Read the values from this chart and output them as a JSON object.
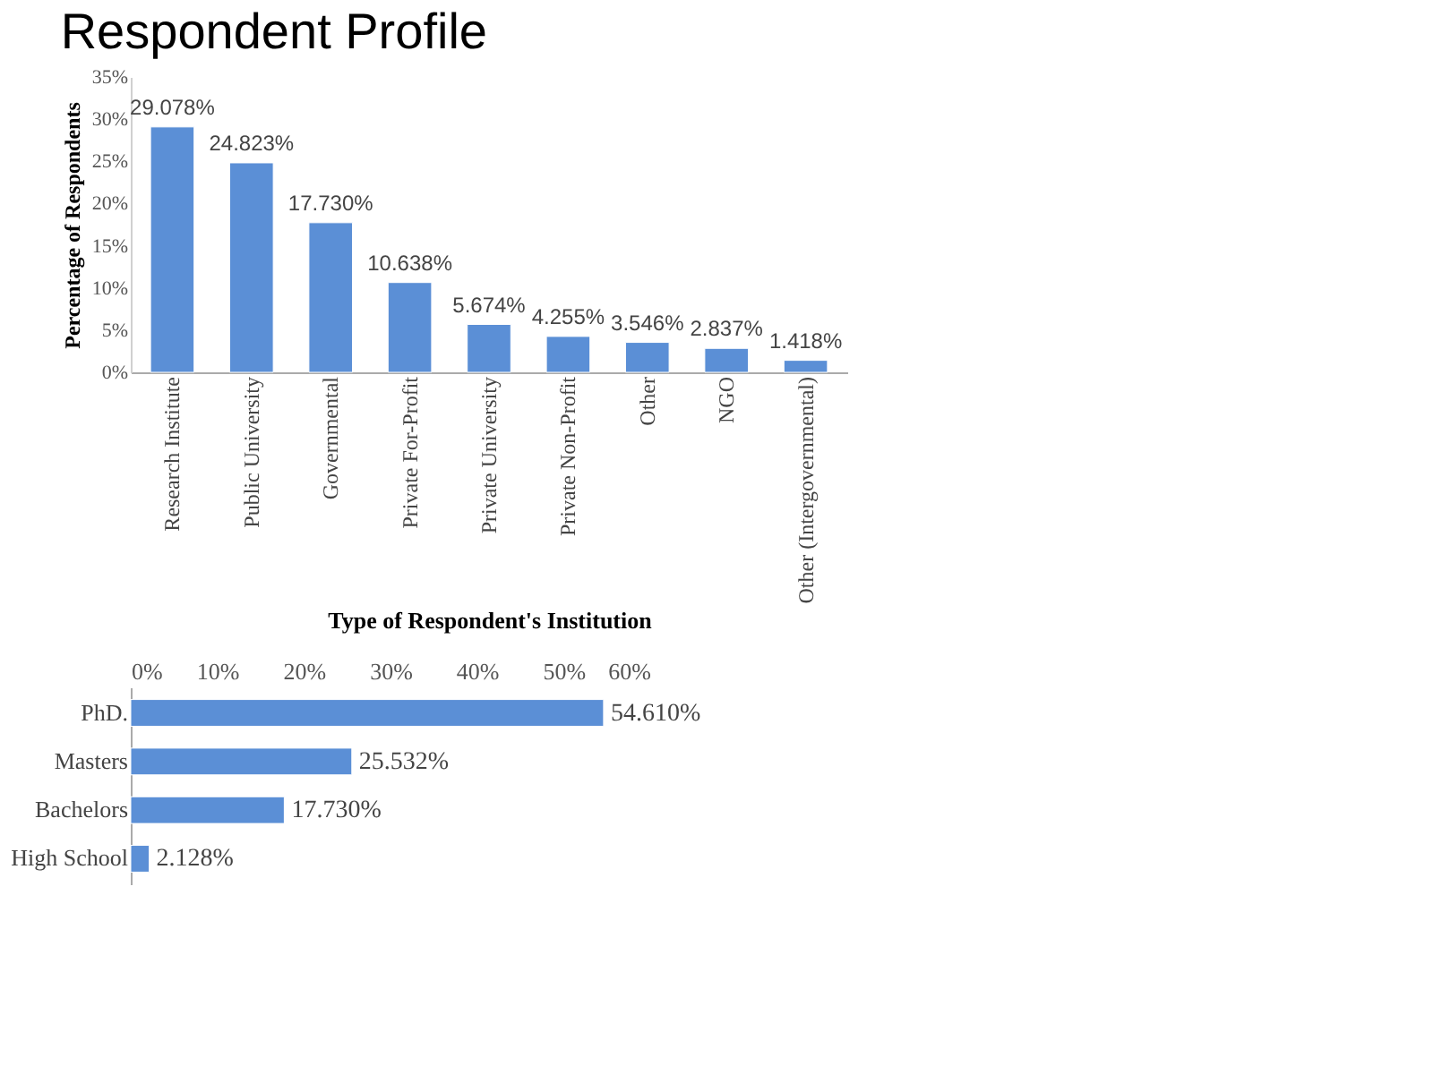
{
  "chart_data": [
    {
      "type": "bar",
      "title": "Respondent Profile",
      "xlabel": "Type of Respondent's Institution",
      "ylabel": "Percentage of Respondents",
      "categories": [
        "Research Institute",
        "Public University",
        "Governmental",
        "Private For-Profit",
        "Private University",
        "Private Non-Profit",
        "Other",
        "NGO",
        "Other (Intergovernmental)"
      ],
      "values": [
        29.078,
        24.823,
        17.73,
        10.638,
        5.674,
        4.255,
        3.546,
        2.837,
        1.418
      ],
      "value_labels": [
        "29.078%",
        "24.823%",
        "17.730%",
        "10.638%",
        "5.674%",
        "4.255%",
        "3.546%",
        "2.837%",
        "1.418%"
      ],
      "color": "#5b8fd6",
      "ylim": [
        0,
        35
      ],
      "yticks": [
        {
          "value": 0,
          "label": "0%"
        },
        {
          "value": 5,
          "label": "5%"
        },
        {
          "value": 10,
          "label": "10%"
        },
        {
          "value": 15,
          "label": "15%"
        },
        {
          "value": 20,
          "label": "20%"
        },
        {
          "value": 25,
          "label": "25%"
        },
        {
          "value": 30,
          "label": "30%"
        },
        {
          "value": 35,
          "label": "35%"
        }
      ],
      "grid": false
    },
    {
      "type": "bar",
      "orientation": "horizontal",
      "categories": [
        "PhD.",
        "Masters",
        "Bachelors",
        "High School"
      ],
      "values": [
        54.61,
        25.532,
        17.73,
        2.128
      ],
      "value_labels": [
        "54.610%",
        "25.532%",
        "17.730%",
        "2.128%"
      ],
      "color": "#5b8fd6",
      "xlim": [
        0,
        60
      ],
      "xticks": [
        {
          "value": 0,
          "label": "0%"
        },
        {
          "value": 10,
          "label": "10%"
        },
        {
          "value": 20,
          "label": "20%"
        },
        {
          "value": 30,
          "label": "30%"
        },
        {
          "value": 40,
          "label": "40%"
        },
        {
          "value": 50,
          "label": "50%"
        },
        {
          "value": 60,
          "label": "60%"
        }
      ],
      "grid": false
    }
  ]
}
